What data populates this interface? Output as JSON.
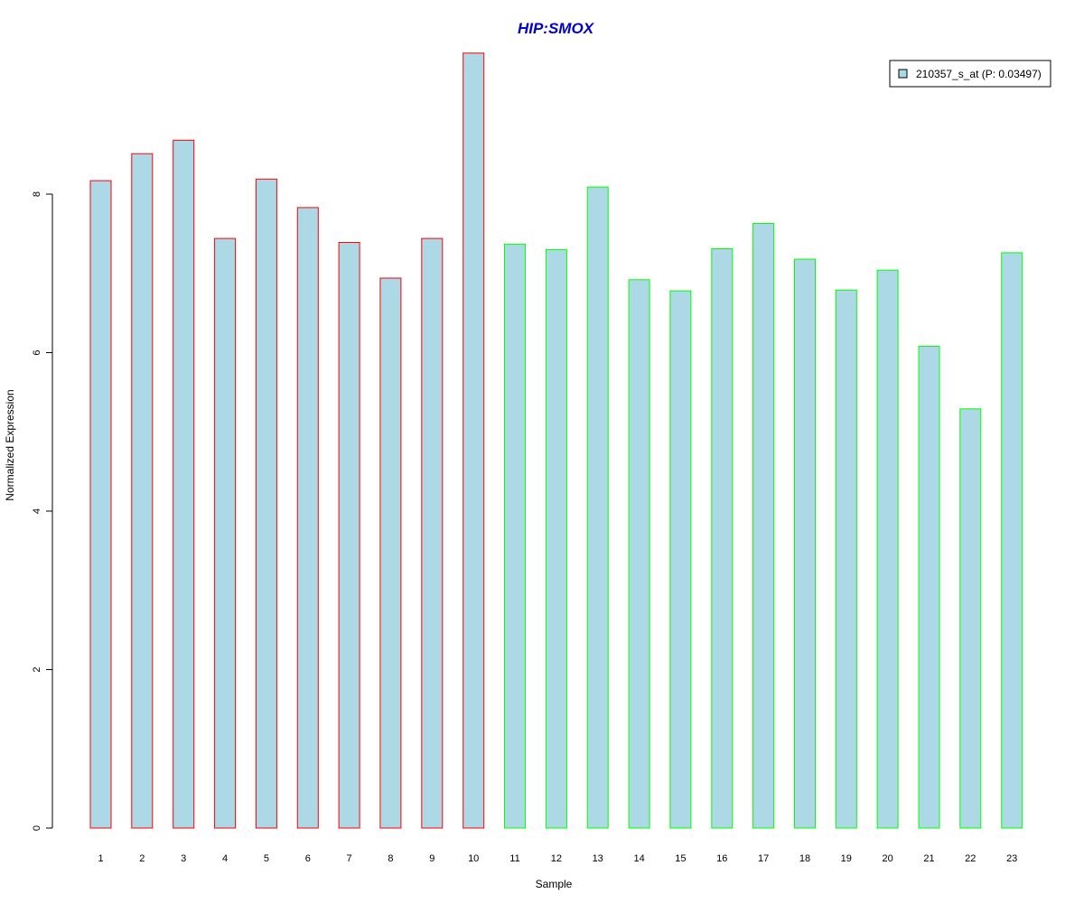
{
  "chart_data": {
    "type": "bar",
    "title": "HIP:SMOX",
    "xlabel": "Sample",
    "ylabel": "Normalized Expression",
    "categories": [
      "1",
      "2",
      "3",
      "4",
      "5",
      "6",
      "7",
      "8",
      "9",
      "10",
      "11",
      "12",
      "13",
      "14",
      "15",
      "16",
      "17",
      "18",
      "19",
      "20",
      "21",
      "22",
      "23"
    ],
    "values": [
      8.17,
      8.51,
      8.68,
      7.44,
      8.19,
      7.83,
      7.39,
      6.94,
      7.44,
      9.78,
      7.37,
      7.3,
      8.09,
      6.92,
      6.78,
      7.31,
      7.63,
      7.18,
      6.79,
      7.04,
      6.08,
      5.29,
      7.26
    ],
    "groups": [
      "red",
      "red",
      "red",
      "red",
      "red",
      "red",
      "red",
      "red",
      "red",
      "red",
      "green",
      "green",
      "green",
      "green",
      "green",
      "green",
      "green",
      "green",
      "green",
      "green",
      "green",
      "green",
      "green"
    ],
    "yticks": [
      0,
      2,
      4,
      6,
      8
    ],
    "ylim": [
      0,
      9.78
    ],
    "grid": false,
    "legend": {
      "placement": "top-right",
      "entries": [
        {
          "label": "210357_s_at (P: 0.03497)",
          "fill": "#add8e6"
        }
      ]
    },
    "colors": {
      "bar_fill": "#add8e6",
      "red_outline": "#ff0000",
      "green_outline": "#00ff00",
      "title": "#0000cd"
    }
  }
}
